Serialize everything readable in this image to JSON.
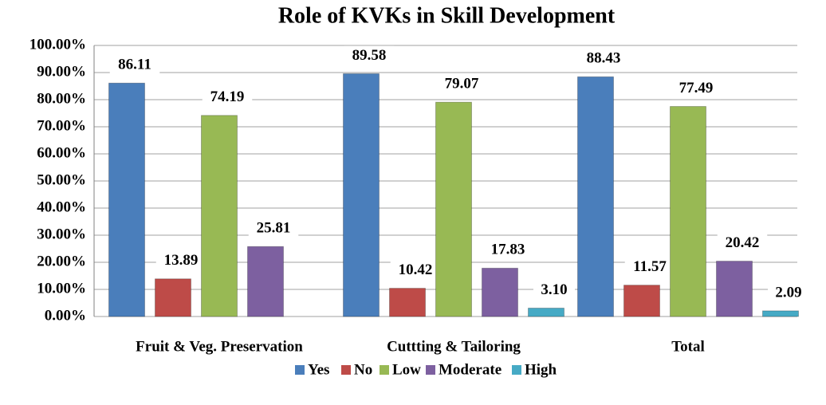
{
  "chart_data": {
    "type": "bar",
    "title": "Role of KVKs in Skill Development",
    "categories": [
      "Fruit & Veg. Preservation",
      "Cuttting & Tailoring",
      "Total"
    ],
    "series": [
      {
        "name": "Yes",
        "color": "#4a7ebb",
        "values": [
          86.11,
          89.58,
          88.43
        ]
      },
      {
        "name": "No",
        "color": "#be4b48",
        "values": [
          13.89,
          10.42,
          11.57
        ]
      },
      {
        "name": "Low",
        "color": "#98b954",
        "values": [
          74.19,
          79.07,
          77.49
        ]
      },
      {
        "name": "Moderate",
        "color": "#7d60a0",
        "values": [
          25.81,
          17.83,
          20.42
        ]
      },
      {
        "name": "High",
        "color": "#46aac5",
        "values": [
          null,
          3.1,
          2.09
        ],
        "value_labels": [
          null,
          "3.10",
          "2.09"
        ]
      }
    ],
    "ylim": [
      0,
      100
    ],
    "yticks": [
      {
        "value": 0,
        "label": "0.00%"
      },
      {
        "value": 10,
        "label": "10.00%"
      },
      {
        "value": 20,
        "label": "20.00%"
      },
      {
        "value": 30,
        "label": "30.00%"
      },
      {
        "value": 40,
        "label": "40.00%"
      },
      {
        "value": 50,
        "label": "50.00%"
      },
      {
        "value": 60,
        "label": "60.00%"
      },
      {
        "value": 70,
        "label": "70.00%"
      },
      {
        "value": 80,
        "label": "80.00%"
      },
      {
        "value": 90,
        "label": "90.00%"
      },
      {
        "value": 100,
        "label": "100.00%"
      }
    ],
    "grid": true,
    "legend": "bottom"
  }
}
